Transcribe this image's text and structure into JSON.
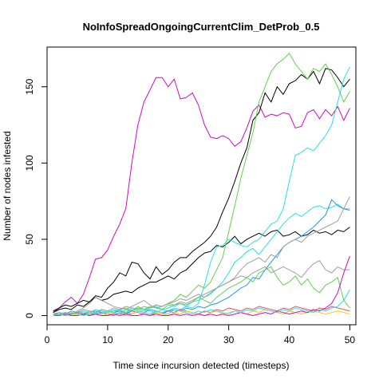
{
  "chart_data": {
    "type": "line",
    "title": "NoInfoSpreadOngoingCurrentClim_DetProb_0.5",
    "xlabel": "Time since incursion detected (timesteps)",
    "ylabel": "Number of nodes infested",
    "xlim": [
      0,
      51
    ],
    "ylim": [
      -6,
      176
    ],
    "xticks": [
      0,
      10,
      20,
      30,
      40,
      50
    ],
    "yticks": [
      0,
      50,
      100,
      150
    ],
    "x": [
      1,
      2,
      3,
      4,
      5,
      6,
      7,
      8,
      9,
      10,
      11,
      12,
      13,
      14,
      15,
      16,
      17,
      18,
      19,
      20,
      21,
      22,
      23,
      24,
      25,
      26,
      27,
      28,
      29,
      30,
      31,
      32,
      33,
      34,
      35,
      36,
      37,
      38,
      39,
      40,
      41,
      42,
      43,
      44,
      45,
      46,
      47,
      48,
      49,
      50
    ],
    "series": [
      {
        "color": "#CD0BBC",
        "values": [
          2,
          5,
          9,
          12,
          8,
          14,
          25,
          37,
          38,
          43,
          52,
          60,
          70,
          100,
          125,
          140,
          148,
          156,
          156,
          150,
          155,
          142,
          143,
          146,
          138,
          125,
          117,
          116,
          118,
          116,
          111,
          114,
          123,
          134,
          138,
          130,
          132,
          131,
          133,
          132,
          123,
          124,
          133,
          135,
          129,
          135,
          131,
          137,
          128,
          136
        ]
      },
      {
        "color": "#000000",
        "values": [
          3,
          5,
          7,
          6,
          8,
          10,
          9,
          13,
          12,
          18,
          22,
          28,
          26,
          35,
          34,
          28,
          24,
          32,
          27,
          30,
          35,
          38,
          38,
          42,
          45,
          48,
          52,
          58,
          68,
          77,
          88,
          100,
          110,
          128,
          133,
          146,
          140,
          150,
          145,
          152,
          154,
          158,
          155,
          160,
          152,
          162,
          161,
          156,
          150,
          155
        ]
      },
      {
        "color": "#000000",
        "values": [
          2,
          4,
          5,
          4,
          7,
          6,
          9,
          12,
          10,
          11,
          14,
          15,
          16,
          15,
          18,
          20,
          22,
          22,
          24,
          26,
          24,
          28,
          30,
          34,
          38,
          41,
          42,
          46,
          45,
          48,
          52,
          47,
          50,
          52,
          54,
          52,
          55,
          56,
          52,
          53,
          55,
          52,
          53,
          56,
          54,
          55,
          53,
          56,
          55,
          58
        ]
      },
      {
        "color": "#61D04F",
        "values": [
          1,
          2,
          1,
          3,
          2,
          1,
          3,
          2,
          4,
          3,
          2,
          4,
          5,
          3,
          6,
          4,
          5,
          7,
          6,
          8,
          10,
          14,
          12,
          16,
          20,
          18,
          22,
          30,
          38,
          55,
          72,
          90,
          105,
          120,
          140,
          150,
          160,
          165,
          168,
          172,
          165,
          160,
          155,
          162,
          160,
          165,
          158,
          150,
          140,
          147
        ]
      },
      {
        "color": "#28E2E5",
        "values": [
          1,
          1,
          2,
          1,
          3,
          2,
          1,
          2,
          3,
          2,
          4,
          3,
          2,
          3,
          5,
          4,
          3,
          2,
          4,
          3,
          5,
          4,
          6,
          5,
          8,
          20,
          35,
          45,
          46,
          50,
          48,
          46,
          45,
          48,
          50,
          55,
          60,
          62,
          70,
          88,
          105,
          107,
          110,
          108,
          113,
          118,
          125,
          140,
          155,
          163
        ]
      },
      {
        "color": "#28E2E5",
        "values": [
          1,
          2,
          1,
          2,
          1,
          3,
          2,
          4,
          3,
          2,
          3,
          4,
          2,
          5,
          4,
          3,
          5,
          6,
          4,
          5,
          7,
          8,
          6,
          9,
          10,
          12,
          14,
          18,
          22,
          28,
          35,
          38,
          42,
          44,
          40,
          45,
          50,
          55,
          60,
          64,
          67,
          65,
          68,
          71,
          72,
          70,
          71,
          73,
          70,
          70
        ]
      },
      {
        "color": "#2297E6",
        "values": [
          1,
          1,
          2,
          1,
          2,
          1,
          2,
          3,
          2,
          1,
          2,
          3,
          2,
          1,
          3,
          2,
          4,
          3,
          2,
          3,
          4,
          3,
          5,
          4,
          6,
          5,
          7,
          8,
          10,
          12,
          15,
          18,
          20,
          25,
          24,
          30,
          35,
          40,
          45,
          48,
          50,
          52,
          55,
          58,
          62,
          66,
          76,
          72,
          70,
          69
        ]
      },
      {
        "color": "#9E9E9E",
        "values": [
          1,
          2,
          1,
          3,
          2,
          4,
          3,
          2,
          4,
          3,
          5,
          4,
          6,
          5,
          4,
          6,
          5,
          7,
          6,
          8,
          7,
          9,
          8,
          10,
          12,
          14,
          16,
          18,
          20,
          22,
          25,
          30,
          34,
          36,
          38,
          35,
          40,
          38,
          45,
          48,
          50,
          48,
          52,
          54,
          56,
          58,
          60,
          62,
          70,
          78
        ]
      },
      {
        "color": "#61D04F",
        "values": [
          0,
          1,
          0,
          1,
          2,
          1,
          0,
          2,
          1,
          3,
          2,
          1,
          4,
          3,
          5,
          4,
          6,
          5,
          4,
          7,
          6,
          8,
          7,
          9,
          12,
          10,
          8,
          12,
          15,
          18,
          20,
          22,
          25,
          22,
          28,
          30,
          32,
          25,
          20,
          22,
          26,
          20,
          24,
          18,
          15,
          20,
          22,
          25,
          10,
          5
        ]
      },
      {
        "color": "#9E9E9E",
        "values": [
          0,
          1,
          2,
          1,
          3,
          5,
          8,
          12,
          10,
          8,
          6,
          5,
          4,
          6,
          8,
          10,
          7,
          5,
          6,
          8,
          9,
          11,
          10,
          12,
          14,
          12,
          15,
          18,
          20,
          22,
          24,
          26,
          25,
          28,
          30,
          32,
          28,
          30,
          32,
          30,
          28,
          25,
          30,
          34,
          36,
          30,
          28,
          32,
          30,
          30
        ]
      },
      {
        "color": "#DF536B",
        "values": [
          0,
          1,
          0,
          1,
          2,
          1,
          0,
          1,
          2,
          1,
          0,
          2,
          1,
          3,
          2,
          1,
          0,
          2,
          1,
          3,
          2,
          4,
          3,
          2,
          1,
          3,
          2,
          4,
          3,
          5,
          4,
          3,
          5,
          4,
          6,
          5,
          4,
          3,
          5,
          4,
          6,
          5,
          4,
          3,
          5,
          4,
          6,
          5,
          4,
          3
        ]
      },
      {
        "color": "#F5C710",
        "values": [
          0,
          0,
          1,
          0,
          1,
          0,
          2,
          1,
          0,
          1,
          2,
          1,
          0,
          1,
          3,
          2,
          1,
          2,
          1,
          0,
          2,
          1,
          3,
          2,
          1,
          0,
          2,
          3,
          1,
          2,
          3,
          2,
          1,
          3,
          2,
          4,
          3,
          2,
          1,
          3,
          2,
          1,
          2,
          3,
          2,
          1,
          2,
          3,
          2,
          1
        ]
      },
      {
        "color": "#CD0BBC",
        "values": [
          0,
          0,
          1,
          0,
          0,
          1,
          0,
          1,
          0,
          0,
          1,
          0,
          1,
          0,
          0,
          1,
          0,
          1,
          0,
          0,
          1,
          0,
          1,
          0,
          1,
          0,
          1,
          0,
          1,
          0,
          1,
          2,
          1,
          0,
          1,
          2,
          1,
          3,
          2,
          1,
          2,
          3,
          2,
          4,
          3,
          5,
          8,
          15,
          28,
          39
        ]
      },
      {
        "color": "#28E2E5",
        "values": [
          0,
          1,
          0,
          2,
          1,
          0,
          1,
          2,
          1,
          3,
          2,
          1,
          2,
          4,
          3,
          2,
          1,
          3,
          2,
          1,
          4,
          3,
          2,
          1,
          3,
          2,
          4,
          3,
          2,
          1,
          3,
          2,
          4,
          3,
          5,
          4,
          3,
          2,
          4,
          3,
          5,
          4,
          3,
          2,
          4,
          3,
          5,
          6,
          10,
          17
        ]
      }
    ]
  }
}
